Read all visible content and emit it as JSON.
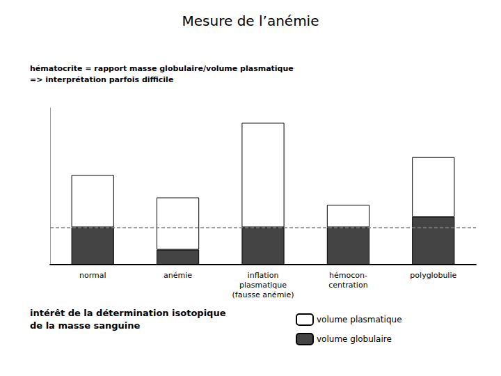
{
  "chart_data": {
    "type": "bar",
    "title": "Mesure de l’anémie",
    "subtitle": "hématocrite = rapport masse globulaire/volume plasmatique\n=> interprétation parfois difficile",
    "annotations": [
      "intérêt de la détermination isotopique\nde la masse sanguine"
    ],
    "categories": [
      "normal",
      "anémie",
      "inflation\nplasmatique\n(fausse anémie)",
      "hémocon-\ncentration",
      "polyglobulie"
    ],
    "series": [
      {
        "name": "volume globulaire",
        "color": "#444444",
        "values": [
          2.5,
          1.0,
          2.5,
          2.5,
          3.2
        ]
      },
      {
        "name": "volume plasmatique",
        "color": "#ffffff",
        "values": [
          3.5,
          3.5,
          7.0,
          1.5,
          4.0
        ]
      }
    ],
    "reference_line": 2.5,
    "stacked": true,
    "ylim": [
      0,
      10.5
    ],
    "grid": false,
    "tick_labels": "x",
    "legend": "lower right"
  }
}
